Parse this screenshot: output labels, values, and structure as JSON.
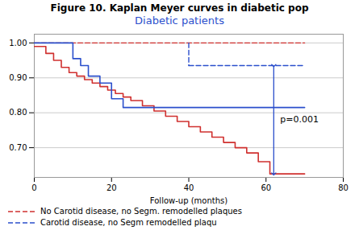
{
  "chart_data": {
    "type": "line",
    "title": "Figure 10. Kaplan Meyer curves in diabetic pop",
    "subtitle": "Diabetic patients",
    "subtitle_color": "#2b4fcc",
    "xlabel": "Follow-up (months)",
    "xlim": [
      0,
      80
    ],
    "xticks": [
      0,
      20,
      40,
      60,
      80
    ],
    "ylim": [
      0.615,
      1.025
    ],
    "yticks": [
      {
        "value": 0.7,
        "label": "0.70"
      },
      {
        "value": 0.8,
        "label": "0.80"
      },
      {
        "value": 0.9,
        "label": "0.90"
      },
      {
        "value": 1.0,
        "label": "1.00"
      }
    ],
    "grid": "y",
    "legend": "lower left",
    "series": [
      {
        "name": "No Carotid disease, no Segm. remodelled plaques",
        "color": "#d0302f",
        "type": "line",
        "line_style": "dashed",
        "x": [
          0,
          40,
          70
        ],
        "values": [
          1.0,
          1.0,
          1.0
        ]
      },
      {
        "color": "#d0302f",
        "type": "step",
        "line_style": "solid",
        "x": [
          0,
          3,
          5,
          7,
          9,
          11,
          13,
          15,
          17,
          19,
          21,
          23,
          25,
          28,
          31,
          34,
          37,
          40,
          43,
          46,
          49,
          52,
          55,
          58,
          61,
          70
        ],
        "values": [
          0.99,
          0.97,
          0.95,
          0.93,
          0.915,
          0.905,
          0.895,
          0.885,
          0.875,
          0.865,
          0.855,
          0.845,
          0.835,
          0.82,
          0.805,
          0.79,
          0.775,
          0.76,
          0.745,
          0.73,
          0.715,
          0.7,
          0.685,
          0.66,
          0.625,
          0.625
        ]
      },
      {
        "color": "#2b4fcc",
        "type": "step",
        "line_style": "solid",
        "x": [
          0,
          8,
          10,
          12,
          14,
          17,
          20,
          23,
          70
        ],
        "values": [
          1.0,
          1.0,
          0.955,
          0.935,
          0.905,
          0.885,
          0.84,
          0.815,
          0.815
        ]
      },
      {
        "name": "Carotid disease, no Segm remodelled plaqu",
        "color": "#2b4fcc",
        "type": "line",
        "line_style": "dashed",
        "x": [
          40,
          62,
          70
        ],
        "values": [
          0.935,
          0.935,
          0.935
        ]
      },
      {
        "color": "#2b4fcc",
        "type": "line",
        "line_style": "dashed",
        "x": [
          40,
          40
        ],
        "values": [
          1.0,
          0.935
        ]
      }
    ],
    "annotations": [
      {
        "type": "double_arrow",
        "x": 62,
        "y_top": 0.935,
        "y_bottom": 0.625,
        "color": "#2b4fcc",
        "text": "p=0.001"
      }
    ]
  }
}
